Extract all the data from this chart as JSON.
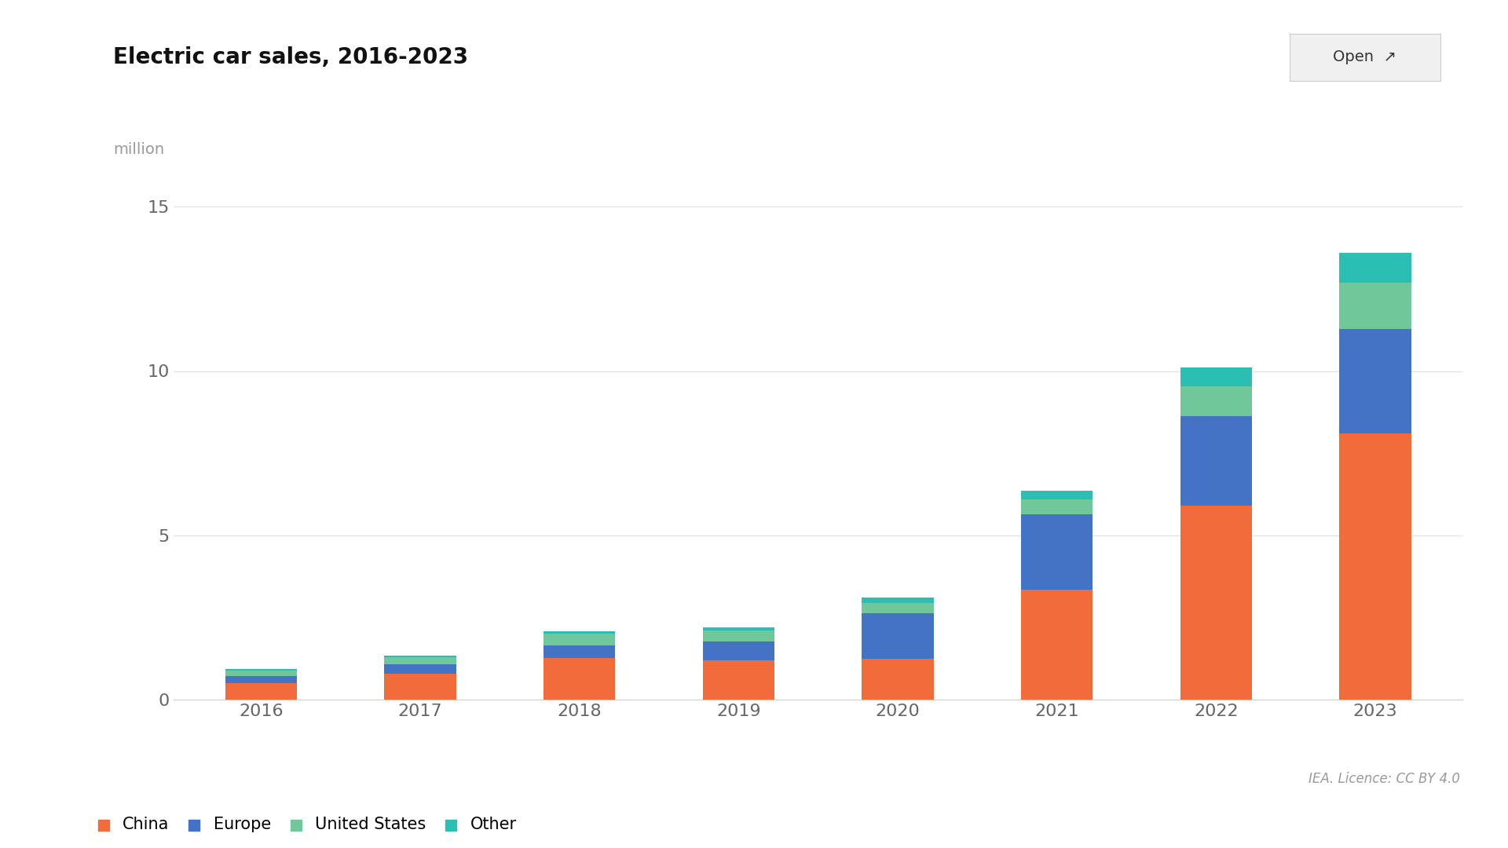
{
  "title": "Electric car sales, 2016-2023",
  "ylabel": "million",
  "years": [
    2016,
    2017,
    2018,
    2019,
    2020,
    2021,
    2022,
    2023
  ],
  "china": [
    0.507,
    0.777,
    1.256,
    1.206,
    1.25,
    3.35,
    5.91,
    8.09
  ],
  "europe": [
    0.215,
    0.306,
    0.386,
    0.561,
    1.367,
    2.29,
    2.71,
    3.2
  ],
  "united_states": [
    0.159,
    0.196,
    0.361,
    0.326,
    0.328,
    0.456,
    0.92,
    1.4
  ],
  "other": [
    0.04,
    0.06,
    0.08,
    0.1,
    0.15,
    0.26,
    0.56,
    0.9
  ],
  "color_china": "#F26B3A",
  "color_europe": "#4472C4",
  "color_us": "#70C89A",
  "color_other": "#2BBFB3",
  "ylim": [
    0,
    16
  ],
  "yticks": [
    0,
    5,
    10,
    15
  ],
  "background": "#FFFFFF",
  "grid_color": "#E0E0E0",
  "legend_labels": [
    "China",
    "Europe",
    "United States",
    "Other"
  ],
  "source_text": "IEA. Licence: CC BY 4.0",
  "bar_width": 0.45
}
